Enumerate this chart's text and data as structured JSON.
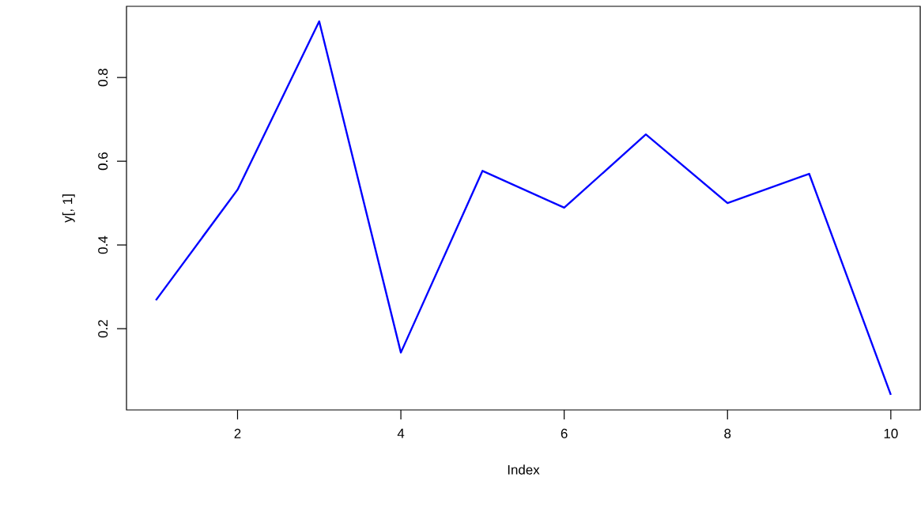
{
  "chart_data": {
    "type": "line",
    "xlabel": "Index",
    "ylabel": "y[, 1]",
    "x": [
      1,
      2,
      3,
      4,
      5,
      6,
      7,
      8,
      9,
      10
    ],
    "values": [
      0.268,
      0.532,
      0.934,
      0.143,
      0.577,
      0.489,
      0.664,
      0.5,
      0.57,
      0.042
    ],
    "color": "#0000ff",
    "xlim": [
      0.64,
      10.36
    ],
    "ylim": [
      0.006,
      0.97
    ],
    "xticks": [
      2,
      4,
      6,
      8,
      10
    ],
    "yticks": [
      0.2,
      0.4,
      0.6,
      0.8
    ]
  }
}
